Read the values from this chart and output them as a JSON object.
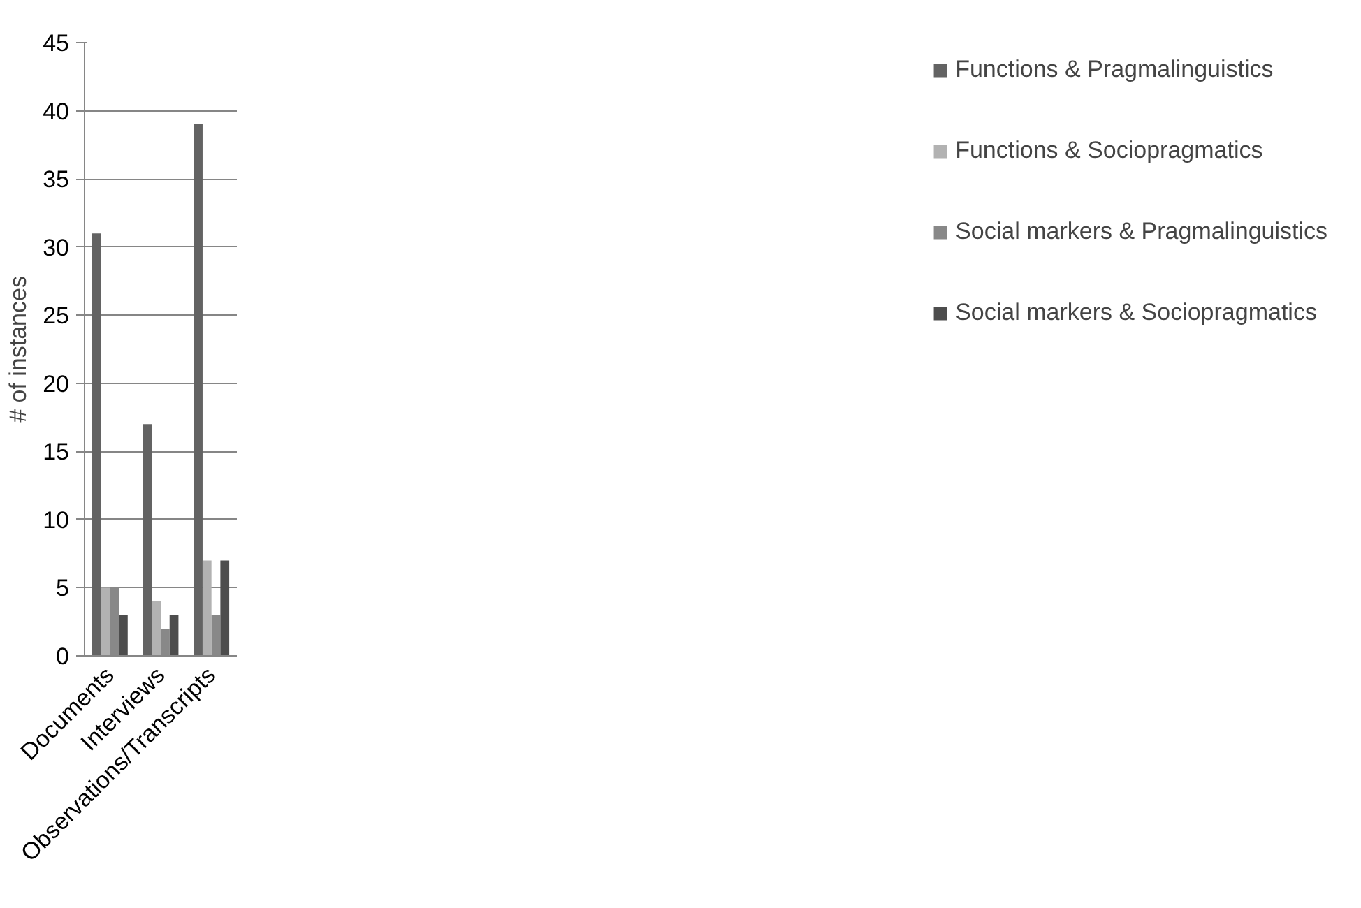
{
  "chart_data": {
    "type": "bar",
    "ylabel": "# of instances",
    "categories": [
      "Documents",
      "Interviews",
      "Observations/Transcripts"
    ],
    "series": [
      {
        "name": "Functions & Pragmalinguistics",
        "color": "#636363",
        "values": [
          31,
          17,
          39
        ]
      },
      {
        "name": "Functions & Sociopragmatics",
        "color": "#b2b2b2",
        "values": [
          5,
          4,
          7
        ]
      },
      {
        "name": "Social markers & Pragmalinguistics",
        "color": "#888888",
        "values": [
          5,
          2,
          3
        ]
      },
      {
        "name": "Social markers & Sociopragmatics",
        "color": "#4d4d4d",
        "values": [
          3,
          3,
          7
        ]
      }
    ],
    "ylim": [
      0,
      45
    ],
    "yticks": [
      0,
      5,
      10,
      15,
      20,
      25,
      30,
      35,
      40,
      45
    ],
    "grid": "y",
    "legend": "right"
  }
}
